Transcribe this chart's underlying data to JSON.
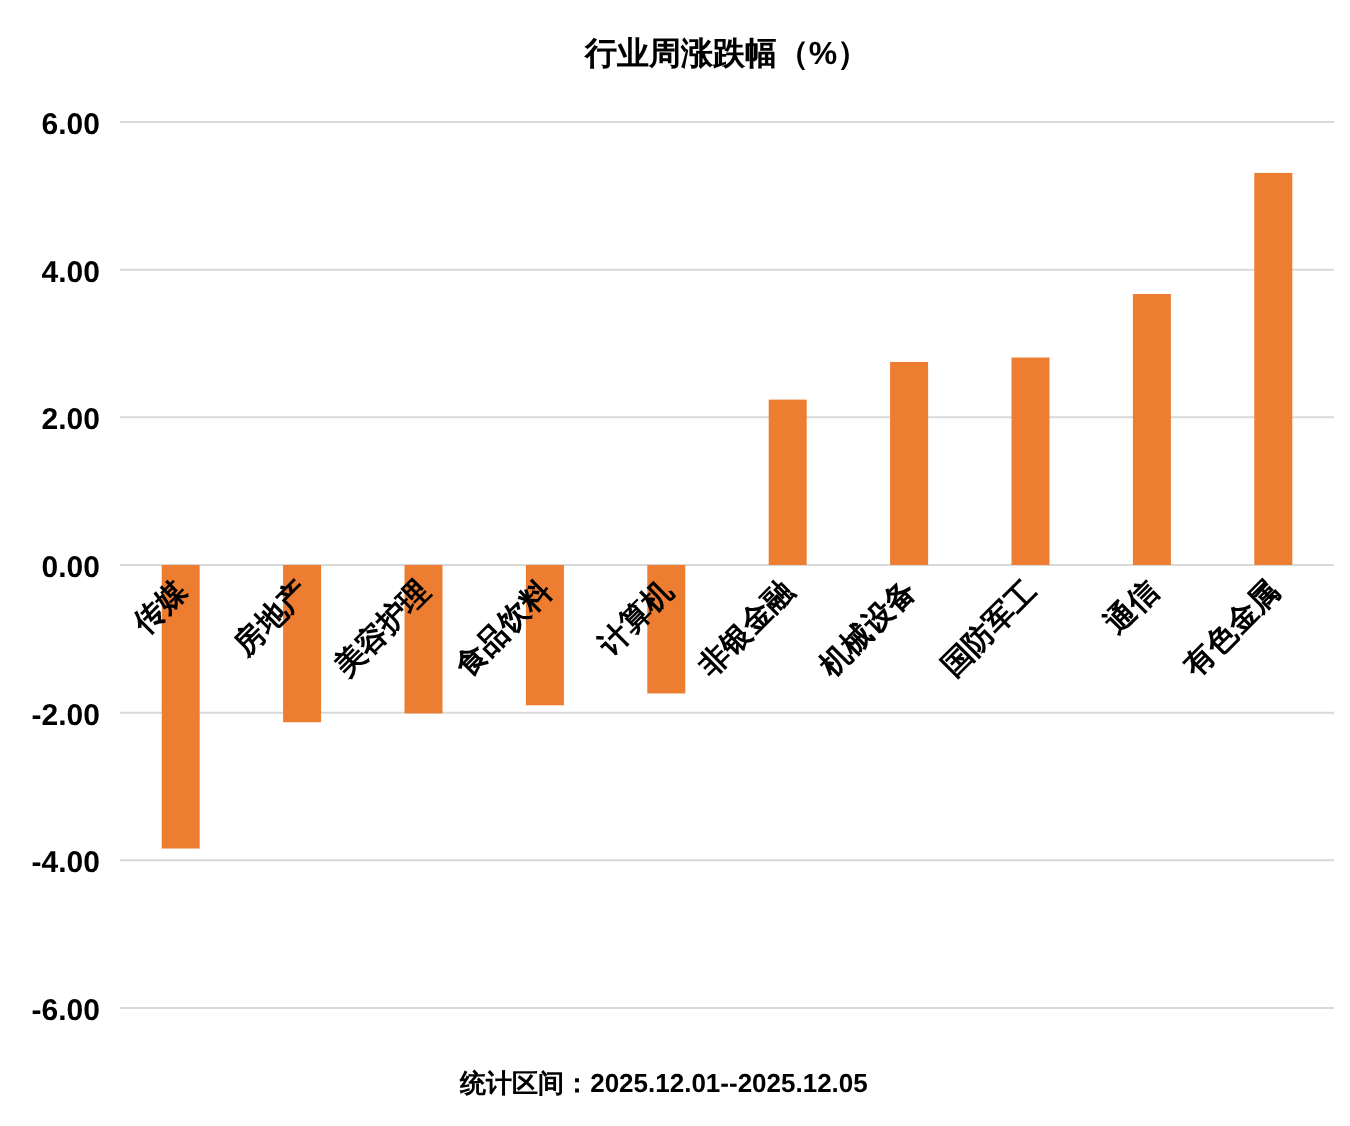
{
  "chart_data": {
    "type": "bar",
    "title": "行业周涨跌幅（%）",
    "categories": [
      "传媒",
      "房地产",
      "美容护理",
      "食品饮料",
      "计算机",
      "非银金融",
      "机械设备",
      "国防军工",
      "通信",
      "有色金属"
    ],
    "values": [
      -3.84,
      -2.13,
      -2.01,
      -1.9,
      -1.74,
      2.24,
      2.75,
      2.81,
      3.67,
      5.31
    ],
    "color": "#ed7d31",
    "ylim": [
      -6,
      6
    ],
    "yticks": [
      {
        "value": -6,
        "label": "-6.00"
      },
      {
        "value": -4,
        "label": "-4.00"
      },
      {
        "value": -2,
        "label": "-2.00"
      },
      {
        "value": 0,
        "label": "0.00"
      },
      {
        "value": 2,
        "label": "2.00"
      },
      {
        "value": 4,
        "label": "4.00"
      },
      {
        "value": 6,
        "label": "6.00"
      }
    ],
    "grid": "y",
    "annotations": [
      "统计区间：2025.12.01--2025.12.05"
    ]
  }
}
